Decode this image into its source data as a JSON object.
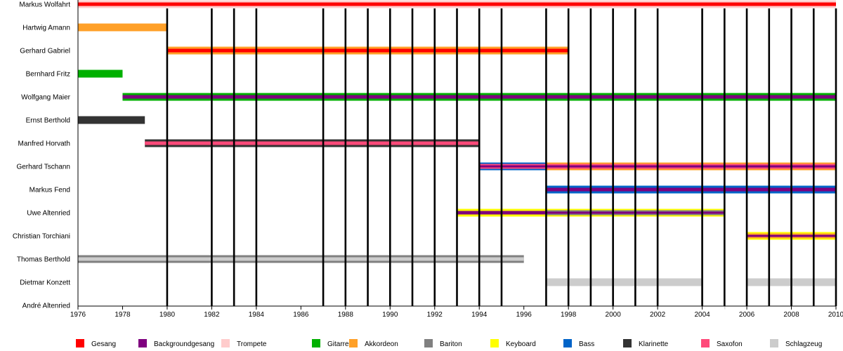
{
  "chart_data": {
    "type": "timeline",
    "xlim": [
      1976,
      2010
    ],
    "x_ticks": [
      1976,
      1978,
      1980,
      1982,
      1984,
      1986,
      1988,
      1990,
      1992,
      1994,
      1996,
      1998,
      2000,
      2002,
      2004,
      2006,
      2008,
      2010
    ],
    "release_lines": [
      1980,
      1982,
      1983,
      1984,
      1987,
      1988,
      1989,
      1990,
      1991,
      1992,
      1993,
      1994,
      1995,
      1997,
      1998,
      1999,
      2000,
      2001,
      2002,
      2004,
      2005,
      2006,
      2007,
      2008,
      2009,
      2010
    ],
    "legend": [
      {
        "name": "Gesang",
        "color": "#ff0000"
      },
      {
        "name": "Backgroundgesang",
        "color": "#7f007f"
      },
      {
        "name": "Trompete",
        "color": "#ffcccc"
      },
      {
        "name": "Gitarre",
        "color": "#00b000"
      },
      {
        "name": "Akkordeon",
        "color": "#ffa028"
      },
      {
        "name": "Bariton",
        "color": "#808080"
      },
      {
        "name": "Keyboard",
        "color": "#ffff00"
      },
      {
        "name": "Bass",
        "color": "#0064c8"
      },
      {
        "name": "Klarinette",
        "color": "#333333"
      },
      {
        "name": "Saxofon",
        "color": "#ff4a7a"
      },
      {
        "name": "Schlagzeug",
        "color": "#cccccc"
      }
    ],
    "members": [
      {
        "name": "Markus Wolfahrt",
        "periods": [
          {
            "from": 1976,
            "to": 2010,
            "roles": [
              "Trompete",
              "Gesang"
            ]
          }
        ]
      },
      {
        "name": "Hartwig Amann",
        "periods": [
          {
            "from": 1976,
            "to": 1980,
            "roles": [
              "Akkordeon"
            ]
          }
        ]
      },
      {
        "name": "Gerhard Gabriel",
        "periods": [
          {
            "from": 1980,
            "to": 1998,
            "roles": [
              "Akkordeon",
              "Gesang"
            ]
          }
        ]
      },
      {
        "name": "Bernhard Fritz",
        "periods": [
          {
            "from": 1976,
            "to": 1978,
            "roles": [
              "Gitarre"
            ]
          }
        ]
      },
      {
        "name": "Wolfgang Maier",
        "periods": [
          {
            "from": 1978,
            "to": 2010,
            "roles": [
              "Gitarre",
              "Backgroundgesang"
            ]
          }
        ]
      },
      {
        "name": "Ernst Berthold",
        "periods": [
          {
            "from": 1976,
            "to": 1979,
            "roles": [
              "Klarinette"
            ]
          }
        ]
      },
      {
        "name": "Manfred Horvath",
        "periods": [
          {
            "from": 1979,
            "to": 1994,
            "roles": [
              "Klarinette",
              "Saxofon"
            ]
          }
        ]
      },
      {
        "name": "Gerhard Tschann",
        "periods": [
          {
            "from": 1994,
            "to": 1997,
            "roles": [
              "Bass",
              "Saxofon",
              "Backgroundgesang"
            ]
          },
          {
            "from": 1997,
            "to": 2010,
            "roles": [
              "Akkordeon",
              "Saxofon",
              "Backgroundgesang"
            ]
          }
        ]
      },
      {
        "name": "Markus Fend",
        "periods": [
          {
            "from": 1997,
            "to": 2010,
            "roles": [
              "Bass",
              "Backgroundgesang"
            ]
          }
        ]
      },
      {
        "name": "Uwe Altenried",
        "periods": [
          {
            "from": 1993,
            "to": 1997,
            "roles": [
              "Keyboard",
              "Backgroundgesang"
            ]
          },
          {
            "from": 1997,
            "to": 2005,
            "roles": [
              "Keyboard",
              "Bariton",
              "Backgroundgesang"
            ]
          }
        ]
      },
      {
        "name": "Christian Torchiani",
        "periods": [
          {
            "from": 2006,
            "to": 2010,
            "roles": [
              "Keyboard",
              "Akkordeon",
              "Backgroundgesang"
            ]
          }
        ]
      },
      {
        "name": "Thomas Berthold",
        "periods": [
          {
            "from": 1976,
            "to": 1996,
            "roles": [
              "Bariton",
              "Schlagzeug"
            ]
          }
        ]
      },
      {
        "name": "Dietmar Konzett",
        "periods": [
          {
            "from": 1997,
            "to": 2004,
            "roles": [
              "Schlagzeug"
            ]
          },
          {
            "from": 2006,
            "to": 2010,
            "roles": [
              "Schlagzeug"
            ]
          }
        ]
      },
      {
        "name": "André Altenried",
        "periods": [
          {
            "from": 2005,
            "to": 2005.02,
            "roles": [
              "Schlagzeug"
            ]
          }
        ]
      }
    ]
  }
}
